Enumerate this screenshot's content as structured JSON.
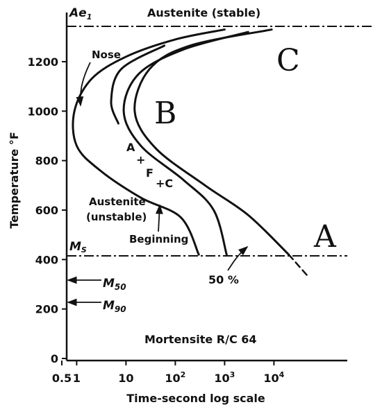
{
  "chart_data": {
    "type": "line",
    "xlabel": "Time-second log scale",
    "ylabel": "Temperature °F",
    "x_scale": "log",
    "xlim": [
      0.5,
      100000
    ],
    "ylim": [
      0,
      1350
    ],
    "x_ticks": [
      {
        "value": 0.5,
        "label": "0.5"
      },
      {
        "value": 1,
        "label": "1"
      },
      {
        "value": 10,
        "label": "10"
      },
      {
        "value": 100,
        "label": "10",
        "sup": "2"
      },
      {
        "value": 1000,
        "label": "10",
        "sup": "3"
      },
      {
        "value": 10000,
        "label": "10",
        "sup": "4"
      }
    ],
    "y_ticks": [
      {
        "value": 0,
        "label": "0"
      },
      {
        "value": 200,
        "label": "200"
      },
      {
        "value": 400,
        "label": "400"
      },
      {
        "value": 600,
        "label": "600"
      },
      {
        "value": 800,
        "label": "800"
      },
      {
        "value": 1000,
        "label": "1000"
      },
      {
        "value": 1200,
        "label": "1200"
      }
    ],
    "reference_lines": [
      {
        "label": "Ae",
        "sub": "1",
        "y": 1335,
        "style": "dash-dot"
      },
      {
        "label": "M",
        "sub": "S",
        "y": 420,
        "style": "dash-dot"
      }
    ],
    "series": [
      {
        "values": [
          [
            1000,
            1330
          ],
          [
            100,
            1290
          ],
          [
            10,
            1220
          ],
          [
            2,
            1130
          ],
          [
            0.9,
            1000
          ],
          [
            1,
            860
          ],
          [
            3,
            760
          ],
          [
            20,
            650
          ],
          [
            130,
            570
          ],
          [
            300,
            420
          ]
        ]
      },
      {
        "values": [
          [
            60,
            1265
          ],
          [
            8,
            1170
          ],
          [
            5,
            1040
          ],
          [
            7,
            950
          ]
        ]
      },
      {
        "values": [
          [
            3000,
            1320
          ],
          [
            150,
            1250
          ],
          [
            18,
            1150
          ],
          [
            9,
            1000
          ],
          [
            20,
            860
          ],
          [
            150,
            720
          ],
          [
            600,
            600
          ],
          [
            1100,
            420
          ]
        ]
      },
      {
        "values": [
          [
            9000,
            1330
          ],
          [
            200,
            1265
          ],
          [
            30,
            1170
          ],
          [
            15,
            1000
          ],
          [
            40,
            850
          ],
          [
            400,
            700
          ],
          [
            3000,
            580
          ],
          [
            20000,
            420
          ]
        ]
      },
      {
        "values": [
          [
            20000,
            420
          ],
          [
            50000,
            330
          ]
        ],
        "style": "dashed"
      }
    ],
    "annotations": [
      {
        "text": "Austenite (stable)"
      },
      {
        "text": "Nose"
      },
      {
        "text": "A"
      },
      {
        "text": "+"
      },
      {
        "text": "F"
      },
      {
        "text": "+C"
      },
      {
        "text": "Austenite"
      },
      {
        "text": "(unstable)"
      },
      {
        "text": "Beginning"
      },
      {
        "text": "50 %"
      },
      {
        "text": "M",
        "sub": "50"
      },
      {
        "text": "M",
        "sub": "90"
      },
      {
        "text": "Mortensite R/C 64"
      }
    ],
    "region_labels": [
      "A",
      "B",
      "C"
    ]
  }
}
